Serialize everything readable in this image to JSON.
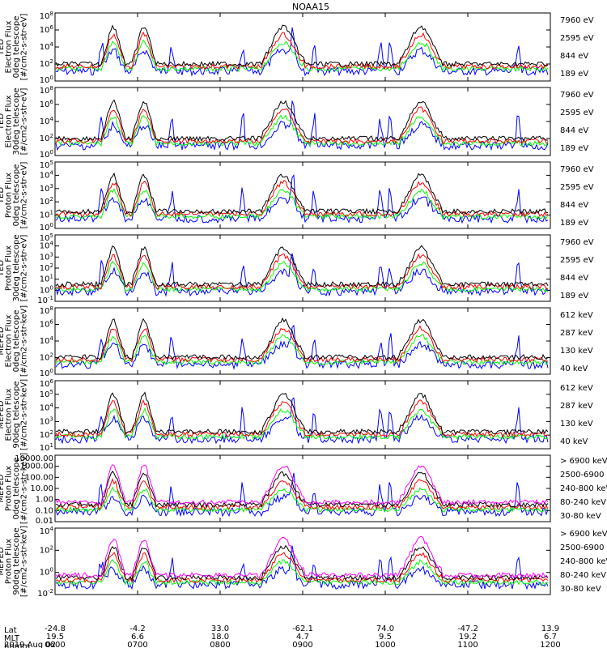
{
  "title": "NOAA15",
  "colors": {
    "black": "#000000",
    "red": "#ff0000",
    "green": "#00ff00",
    "blue": "#0000ff",
    "magenta": "#ff00ff"
  },
  "chart_data": [
    {
      "type": "line",
      "instrument": "TED",
      "ylabel": [
        "TED",
        "Electron Flux",
        "0deg telescope",
        "[#/cm2-s-str-eV]"
      ],
      "log_scale": true,
      "yticks": [
        "10^8",
        "10^6",
        "10^4",
        "10^2",
        "10^0"
      ],
      "series": [
        {
          "name": "7960 eV",
          "color": "#000000"
        },
        {
          "name": "2595 eV",
          "color": "#ff0000"
        },
        {
          "name": "844 eV",
          "color": "#00ff00"
        },
        {
          "name": "189 eV",
          "color": "#0000ff"
        }
      ]
    },
    {
      "type": "line",
      "instrument": "TED",
      "ylabel": [
        "TED",
        "Electron Flux",
        "30deg telescope",
        "[#/cm2-s-str-eV]"
      ],
      "log_scale": true,
      "yticks": [
        "10^8",
        "10^6",
        "10^4",
        "10^2",
        "10^0"
      ],
      "series": [
        {
          "name": "7960 eV",
          "color": "#000000"
        },
        {
          "name": "2595 eV",
          "color": "#ff0000"
        },
        {
          "name": "844 eV",
          "color": "#00ff00"
        },
        {
          "name": "189 eV",
          "color": "#0000ff"
        }
      ]
    },
    {
      "type": "line",
      "instrument": "TED",
      "ylabel": [
        "TED",
        "Proton Flux",
        "0deg telescope",
        "[#/cm2-s-str-eV]"
      ],
      "log_scale": true,
      "yticks": [
        "10^5",
        "10^4",
        "10^3",
        "10^2",
        "10^1",
        "10^0"
      ],
      "series": [
        {
          "name": "7960 eV",
          "color": "#000000"
        },
        {
          "name": "2595 eV",
          "color": "#ff0000"
        },
        {
          "name": "844 eV",
          "color": "#00ff00"
        },
        {
          "name": "189 eV",
          "color": "#0000ff"
        }
      ]
    },
    {
      "type": "line",
      "instrument": "TED",
      "ylabel": [
        "TED",
        "Proton Flux",
        "30deg telescope",
        "[#/cm2-s-str-eV]"
      ],
      "log_scale": true,
      "yticks": [
        "10^5",
        "10^4",
        "10^3",
        "10^2",
        "10^1",
        "10^0",
        "10^-1"
      ],
      "series": [
        {
          "name": "7960 eV",
          "color": "#000000"
        },
        {
          "name": "2595 eV",
          "color": "#ff0000"
        },
        {
          "name": "844 eV",
          "color": "#00ff00"
        },
        {
          "name": "189 eV",
          "color": "#0000ff"
        }
      ]
    },
    {
      "type": "line",
      "instrument": "MEPED",
      "ylabel": [
        "MEPED",
        "Electron Flux",
        "0deg telescope",
        "[#/cm2-s-str-keV]"
      ],
      "log_scale": true,
      "yticks": [
        "10^8",
        "10^6",
        "10^4",
        "10^2",
        "10^0"
      ],
      "series": [
        {
          "name": "612 keV",
          "color": "#000000"
        },
        {
          "name": "287 keV",
          "color": "#ff0000"
        },
        {
          "name": "130 keV",
          "color": "#00ff00"
        },
        {
          "name": "40 keV",
          "color": "#0000ff"
        }
      ]
    },
    {
      "type": "line",
      "instrument": "MEPED",
      "ylabel": [
        "MEPED",
        "Electron Flux",
        "90deg telescope",
        "[#/cm2-s-str-keV]"
      ],
      "log_scale": true,
      "yticks": [
        "10^6",
        "10^5",
        "10^4",
        "10^3",
        "10^2",
        "10^1"
      ],
      "series": [
        {
          "name": "612 keV",
          "color": "#000000"
        },
        {
          "name": "287 keV",
          "color": "#ff0000"
        },
        {
          "name": "130 keV",
          "color": "#00ff00"
        },
        {
          "name": "40 keV",
          "color": "#0000ff"
        }
      ]
    },
    {
      "type": "scatter",
      "instrument": "MEPED",
      "ylabel": [
        "MEPED",
        "Proton Flux",
        "0deg telescope",
        "[#/cm2-s-str-keV]"
      ],
      "log_scale": true,
      "yticks": [
        "10000.00",
        "1000.00",
        "100.00",
        "10.00",
        "1.00",
        "0.10",
        "0.01"
      ],
      "series": [
        {
          "name": "> 6900 keV",
          "color": "#ff00ff"
        },
        {
          "name": "2500-6900",
          "color": "#000000"
        },
        {
          "name": "240-800 keV",
          "color": "#ff0000"
        },
        {
          "name": "80-240 keV",
          "color": "#00ff00"
        },
        {
          "name": "30-80 keV",
          "color": "#0000ff"
        }
      ]
    },
    {
      "type": "scatter",
      "instrument": "MEPED",
      "ylabel": [
        "MEPED",
        "Proton Flux",
        "90deg telescope",
        "[#/cm2-s-str-keV]"
      ],
      "log_scale": true,
      "yticks": [
        "10^4",
        "10^2",
        "10^0",
        "10^-2"
      ],
      "series": [
        {
          "name": "> 6900 keV",
          "color": "#ff00ff"
        },
        {
          "name": "2500-6900",
          "color": "#000000"
        },
        {
          "name": "240-800 keV",
          "color": "#ff0000"
        },
        {
          "name": "80-240 keV",
          "color": "#00ff00"
        },
        {
          "name": "30-80 keV",
          "color": "#0000ff"
        }
      ]
    }
  ],
  "x_axis": {
    "row_labels": [
      "Lat",
      "MLT",
      "hhmm"
    ],
    "date": "2019 Aug 02",
    "ticks": [
      {
        "lat": "-24.8",
        "mlt": "19.5",
        "hhmm": "0600"
      },
      {
        "lat": "-4.2",
        "mlt": "6.6",
        "hhmm": "0700"
      },
      {
        "lat": "33.0",
        "mlt": "18.0",
        "hhmm": "0800"
      },
      {
        "lat": "-62.1",
        "mlt": "4.7",
        "hhmm": "0900"
      },
      {
        "lat": "74.0",
        "mlt": "9.5",
        "hhmm": "1000"
      },
      {
        "lat": "-47.2",
        "mlt": "19.2",
        "hhmm": "1100"
      },
      {
        "lat": "13.9",
        "mlt": "6.7",
        "hhmm": "1200"
      }
    ]
  }
}
